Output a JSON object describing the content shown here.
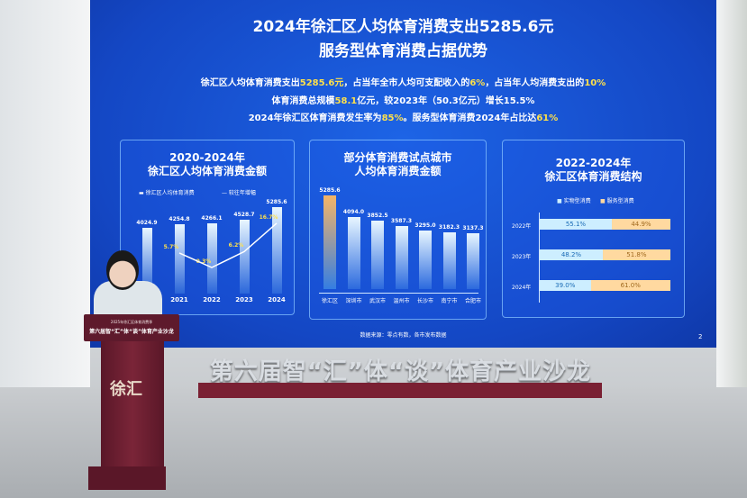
{
  "slide": {
    "title": "2024年徐汇区人均体育消费支出5285.6元",
    "subtitle": "服务型体育消费占据优势",
    "line1": [
      "徐汇区人均体育消费支出",
      "5285.6元",
      "，占当年全市人均可支配收入的",
      "6%",
      "，占当年人均消费支出的",
      "10%"
    ],
    "line2": [
      "体育消费总规模",
      "58.1",
      "亿元，较2023年（50.3亿元）增长15.5%"
    ],
    "line3": [
      "2024年徐汇区体育消费发生率为",
      "85%",
      "。服务型体育消费2024年占比达",
      "61%"
    ],
    "source": "数据来源：零点有数，各市发布数据",
    "page": "2"
  },
  "chart_data": [
    {
      "type": "bar",
      "title": "2020-2024年\n徐汇区人均体育消费金额",
      "title_lines": [
        "2020-2024年",
        "徐汇区人均体育消费金额"
      ],
      "categories": [
        "2020",
        "2021",
        "2022",
        "2023",
        "2024"
      ],
      "series": [
        {
          "name": "徐汇区人均体育消费",
          "values": [
            4024.9,
            4254.8,
            4266.1,
            4528.7,
            5285.6
          ],
          "labels": [
            "4024.9",
            "4254.8",
            "4266.1",
            "4528.7",
            "5285.6"
          ]
        },
        {
          "name": "较往年增幅",
          "type": "line",
          "values": [
            null,
            5.7,
            0.3,
            6.2,
            16.7
          ],
          "labels": [
            "",
            "5.7%",
            "0.3%",
            "6.2%",
            "16.7%"
          ]
        }
      ]
    },
    {
      "type": "bar",
      "title_lines": [
        "部分体育消费试点城市",
        "人均体育消费金额"
      ],
      "categories": [
        "徐汇区",
        "深圳市",
        "武汉市",
        "温州市",
        "长沙市",
        "南宁市",
        "合肥市"
      ],
      "values": [
        5285.6,
        4094.0,
        3852.5,
        3587.3,
        3295.0,
        3182.3,
        3137.3
      ],
      "labels": [
        "5285.6",
        "4094.0",
        "3852.5",
        "3587.3",
        "3295.0",
        "3182.3",
        "3137.3"
      ],
      "highlight_color": "#f5b466"
    },
    {
      "type": "bar",
      "orientation": "horizontal",
      "stacked": true,
      "title_lines": [
        "2022-2024年",
        "徐汇区体育消费结构"
      ],
      "categories": [
        "2022年",
        "2023年",
        "2024年"
      ],
      "series": [
        {
          "name": "实物型消费",
          "values": [
            55.1,
            48.2,
            39.0
          ],
          "labels": [
            "55.1%",
            "48.2%",
            "39.0%"
          ],
          "color": "#cdeeff"
        },
        {
          "name": "服务型消费",
          "values": [
            44.9,
            51.8,
            61.0
          ],
          "labels": [
            "44.9%",
            "51.8%",
            "61.0%"
          ],
          "color": "#ffd9a0"
        }
      ]
    }
  ],
  "venue": {
    "banner": "第六届智“汇”体“谈”体育产业沙龙",
    "podium_line1": "2025年徐汇区体育消费季",
    "podium_line2": "第六届智“汇”体“谈”体育产业沙龙",
    "podium_logo": "徐汇"
  }
}
